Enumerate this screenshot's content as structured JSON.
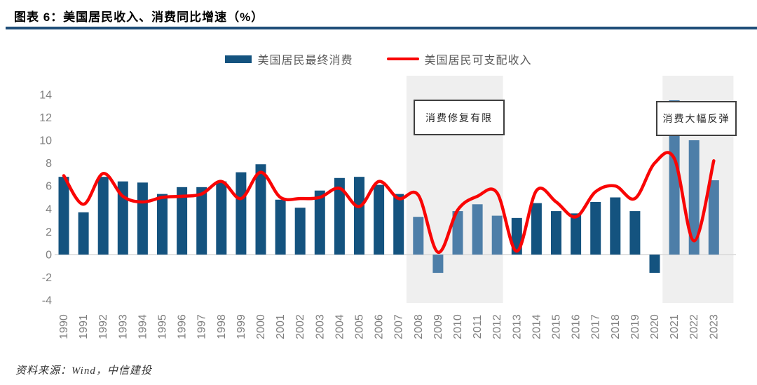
{
  "header": {
    "title": "图表 6：美国居民收入、消费同比增速（%）"
  },
  "legend": {
    "bar_label": "美国居民最终消费",
    "line_label": "美国居民可支配收入"
  },
  "annotations": [
    {
      "text": "消费修复有限"
    },
    {
      "text": "消费大幅反弹"
    }
  ],
  "footer": {
    "source": "资料来源：Wind，中信建投"
  },
  "colors": {
    "title_rule": "#1F4E79",
    "bar_dark": "#14537F",
    "bar_light": "#4D7EA8",
    "line_red": "#F90505",
    "band_gray": "#EFEFEF",
    "axis_gray": "#D9D9D9",
    "tick_gray": "#7F7F7F"
  },
  "chart_data": {
    "type": "combo",
    "title": "美国居民收入、消费同比增速（%）",
    "categories": [
      1990,
      1991,
      1992,
      1993,
      1994,
      1995,
      1996,
      1997,
      1998,
      1999,
      2000,
      2001,
      2002,
      2003,
      2004,
      2005,
      2006,
      2007,
      2008,
      2009,
      2010,
      2011,
      2012,
      2013,
      2014,
      2015,
      2016,
      2017,
      2018,
      2019,
      2020,
      2021,
      2022,
      2023
    ],
    "series": [
      {
        "name": "美国居民最终消费",
        "type": "bar",
        "values": [
          6.8,
          3.7,
          6.8,
          6.4,
          6.3,
          5.3,
          5.9,
          5.9,
          6.4,
          7.2,
          7.9,
          4.8,
          4.1,
          5.6,
          6.7,
          6.8,
          6.1,
          5.3,
          3.3,
          -1.6,
          3.8,
          4.4,
          3.4,
          3.2,
          4.5,
          3.8,
          3.6,
          4.6,
          5.0,
          3.8,
          -1.6,
          13.5,
          10.0,
          6.5
        ]
      },
      {
        "name": "美国居民可支配收入",
        "type": "line",
        "values": [
          6.9,
          4.4,
          7.1,
          5.1,
          4.6,
          5.0,
          5.1,
          5.3,
          6.4,
          4.9,
          7.2,
          5.0,
          4.9,
          5.0,
          5.8,
          4.2,
          6.4,
          4.9,
          5.2,
          0.2,
          3.9,
          5.1,
          5.4,
          0.3,
          5.6,
          4.6,
          3.3,
          5.5,
          6.0,
          4.9,
          8.0,
          8.4,
          1.2,
          8.2
        ]
      }
    ],
    "ylim": [
      -4,
      14
    ],
    "yticks": [
      -4,
      -2,
      0,
      2,
      4,
      6,
      8,
      10,
      12,
      14
    ],
    "grid": false,
    "legend_position": "top-center",
    "highlight_bands": [
      {
        "from_year": 2007.4,
        "to_year": 2012.3,
        "label": "消费修复有限"
      },
      {
        "from_year": 2020.4,
        "to_year": 2024.0,
        "label": "消费大幅反弹"
      }
    ],
    "light_bar_years": [
      2008,
      2009,
      2010,
      2011,
      2012,
      2021,
      2022,
      2023
    ]
  }
}
